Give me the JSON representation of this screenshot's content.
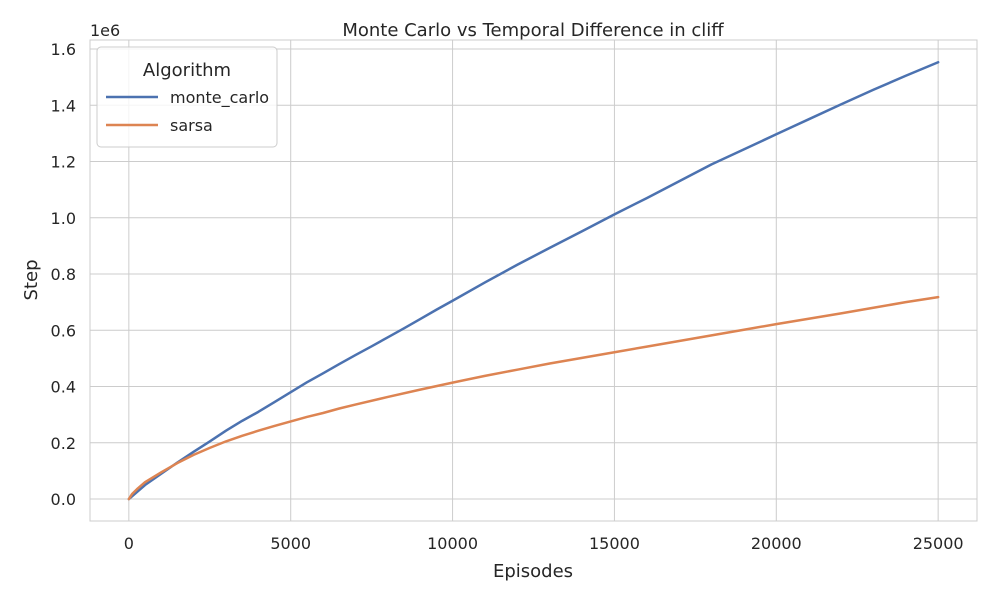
{
  "chart_data": {
    "type": "line",
    "title": "Monte Carlo vs Temporal Difference in cliff",
    "xlabel": "Episodes",
    "ylabel": "Step",
    "y_offset_label": "1e6",
    "xlim": [
      -1200,
      26200
    ],
    "ylim": [
      -0.078,
      1.632
    ],
    "x_ticks": [
      0,
      5000,
      10000,
      15000,
      20000,
      25000
    ],
    "x_tick_labels": [
      "0",
      "5000",
      "10000",
      "15000",
      "20000",
      "25000"
    ],
    "y_ticks": [
      0.0,
      0.2,
      0.4,
      0.6,
      0.8,
      1.0,
      1.2,
      1.4,
      1.6
    ],
    "y_tick_labels": [
      "0.0",
      "0.2",
      "0.4",
      "0.6",
      "0.8",
      "1.0",
      "1.2",
      "1.4",
      "1.6"
    ],
    "grid": true,
    "legend": {
      "title": "Algorithm",
      "placement": "top-left"
    },
    "series": [
      {
        "name": "monte_carlo",
        "color": "#4c72b0",
        "x": [
          0,
          250,
          500,
          1000,
          1500,
          2000,
          2500,
          3000,
          3500,
          4000,
          4500,
          5000,
          5500,
          6000,
          6500,
          7000,
          7500,
          8000,
          8500,
          9000,
          9500,
          10000,
          11000,
          12000,
          13000,
          14000,
          15000,
          16000,
          17000,
          18000,
          19000,
          20000,
          21000,
          22000,
          23000,
          24000,
          25000
        ],
        "y": [
          0.0,
          0.025,
          0.05,
          0.09,
          0.13,
          0.168,
          0.205,
          0.243,
          0.278,
          0.31,
          0.345,
          0.38,
          0.415,
          0.447,
          0.48,
          0.512,
          0.543,
          0.575,
          0.607,
          0.64,
          0.673,
          0.705,
          0.77,
          0.833,
          0.893,
          0.952,
          1.012,
          1.07,
          1.13,
          1.19,
          1.243,
          1.297,
          1.35,
          1.403,
          1.455,
          1.505,
          1.553
        ]
      },
      {
        "name": "sarsa",
        "color": "#dd8452",
        "x": [
          0,
          100,
          250,
          500,
          1000,
          1500,
          2000,
          2500,
          3000,
          3500,
          4000,
          4500,
          5000,
          5500,
          6000,
          6500,
          7000,
          8000,
          9000,
          10000,
          11000,
          12000,
          13000,
          14000,
          15000,
          16000,
          17000,
          18000,
          19000,
          20000,
          21000,
          22000,
          23000,
          24000,
          25000
        ],
        "y": [
          0.0,
          0.018,
          0.035,
          0.06,
          0.095,
          0.128,
          0.157,
          0.182,
          0.205,
          0.225,
          0.243,
          0.26,
          0.276,
          0.292,
          0.306,
          0.322,
          0.336,
          0.363,
          0.389,
          0.414,
          0.438,
          0.46,
          0.482,
          0.502,
          0.522,
          0.542,
          0.562,
          0.582,
          0.602,
          0.622,
          0.641,
          0.66,
          0.68,
          0.7,
          0.718
        ]
      }
    ]
  }
}
